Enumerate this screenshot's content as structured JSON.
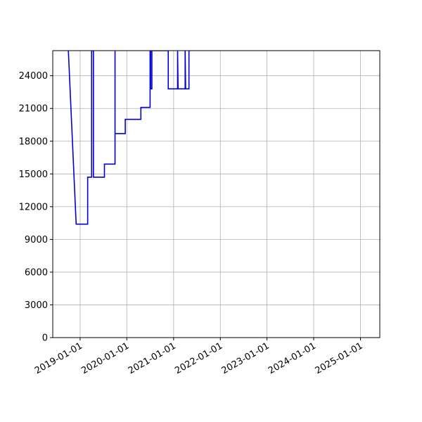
{
  "chart_data": {
    "type": "line",
    "title": "",
    "xlabel": "",
    "ylabel": "",
    "x_axis": "date",
    "xlim": [
      "2018-06-01",
      "2025-06-01"
    ],
    "ylim": [
      0,
      26300
    ],
    "grid": true,
    "legend": "none",
    "y_ticks": [
      0,
      3000,
      6000,
      9000,
      12000,
      15000,
      18000,
      21000,
      24000
    ],
    "y_tick_labels": [
      "0",
      "3000",
      "6000",
      "9000",
      "12000",
      "15000",
      "18000",
      "21000",
      "24000"
    ],
    "x_ticks": [
      "2019-01-01",
      "2020-01-01",
      "2021-01-01",
      "2022-01-01",
      "2023-01-01",
      "2024-01-01",
      "2025-01-01"
    ],
    "x_tick_labels": [
      "2019-01-01",
      "2020-01-01",
      "2021-01-01",
      "2022-01-01",
      "2023-01-01",
      "2024-01-01",
      "2025-01-01"
    ],
    "series": [
      {
        "color": "#0000dd",
        "x": [
          "2018-10-01",
          "2018-12-01",
          "2019-03-01",
          "2019-03-01",
          "2019-04-01",
          "2019-04-01",
          "2019-04-15",
          "2019-04-15",
          "2019-05-10",
          "2019-07-10",
          "2019-07-10",
          "2019-10-01",
          "2019-10-01",
          "2019-10-01",
          "2019-12-20",
          "2019-12-20",
          "2020-04-20",
          "2020-04-20",
          "2020-07-01",
          "2020-07-01",
          "2020-07-05",
          "2020-07-05",
          "2020-07-15",
          "2020-07-15",
          "2020-11-20",
          "2020-11-20",
          "2020-11-25",
          "2021-02-01",
          "2021-02-01",
          "2021-02-05",
          "2021-04-01",
          "2021-04-01",
          "2021-04-05",
          "2021-05-01",
          "2021-05-01",
          "2021-05-10"
        ],
        "y": [
          26300,
          10400,
          10400,
          14700,
          14700,
          26300,
          26300,
          14700,
          14700,
          14700,
          15900,
          15900,
          26300,
          18700,
          18700,
          20000,
          20000,
          21100,
          21100,
          26300,
          26300,
          22800,
          22800,
          26300,
          26300,
          22800,
          22800,
          22800,
          26300,
          22800,
          22800,
          26300,
          22800,
          22800,
          26300,
          26300
        ]
      }
    ]
  }
}
